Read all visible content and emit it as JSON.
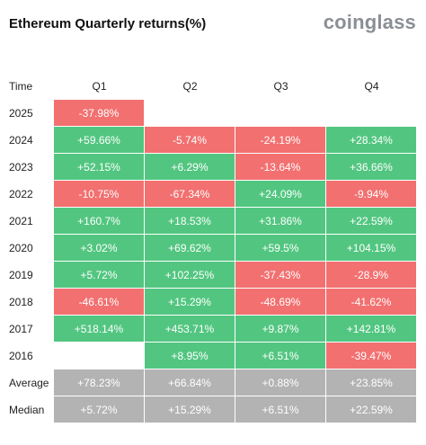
{
  "title": "Ethereum Quarterly returns(%)",
  "brand": "coinglass",
  "colors": {
    "positive": "#52c680",
    "negative": "#f27070",
    "stat": "#b3b3b3"
  },
  "chart_data": {
    "type": "table",
    "title": "Ethereum Quarterly returns(%)",
    "corner_label": "Time",
    "columns": [
      "Q1",
      "Q2",
      "Q3",
      "Q4"
    ],
    "rows": [
      {
        "label": "2025",
        "kind": "year",
        "values": [
          "-37.98%",
          null,
          null,
          null
        ]
      },
      {
        "label": "2024",
        "kind": "year",
        "values": [
          "+59.66%",
          "-5.74%",
          "-24.19%",
          "+28.34%"
        ]
      },
      {
        "label": "2023",
        "kind": "year",
        "values": [
          "+52.15%",
          "+6.29%",
          "-13.64%",
          "+36.66%"
        ]
      },
      {
        "label": "2022",
        "kind": "year",
        "values": [
          "-10.75%",
          "-67.34%",
          "+24.09%",
          "-9.94%"
        ]
      },
      {
        "label": "2021",
        "kind": "year",
        "values": [
          "+160.7%",
          "+18.53%",
          "+31.86%",
          "+22.59%"
        ]
      },
      {
        "label": "2020",
        "kind": "year",
        "values": [
          "+3.02%",
          "+69.62%",
          "+59.5%",
          "+104.15%"
        ]
      },
      {
        "label": "2019",
        "kind": "year",
        "values": [
          "+5.72%",
          "+102.25%",
          "-37.43%",
          "-28.9%"
        ]
      },
      {
        "label": "2018",
        "kind": "year",
        "values": [
          "-46.61%",
          "+15.29%",
          "-48.69%",
          "-41.62%"
        ]
      },
      {
        "label": "2017",
        "kind": "year",
        "values": [
          "+518.14%",
          "+453.71%",
          "+9.87%",
          "+142.81%"
        ]
      },
      {
        "label": "2016",
        "kind": "year",
        "values": [
          null,
          "+8.95%",
          "+6.51%",
          "-39.47%"
        ]
      },
      {
        "label": "Average",
        "kind": "stat",
        "values": [
          "+78.23%",
          "+66.84%",
          "+0.88%",
          "+23.85%"
        ]
      },
      {
        "label": "Median",
        "kind": "stat",
        "values": [
          "+5.72%",
          "+15.29%",
          "+6.51%",
          "+22.59%"
        ]
      }
    ]
  }
}
